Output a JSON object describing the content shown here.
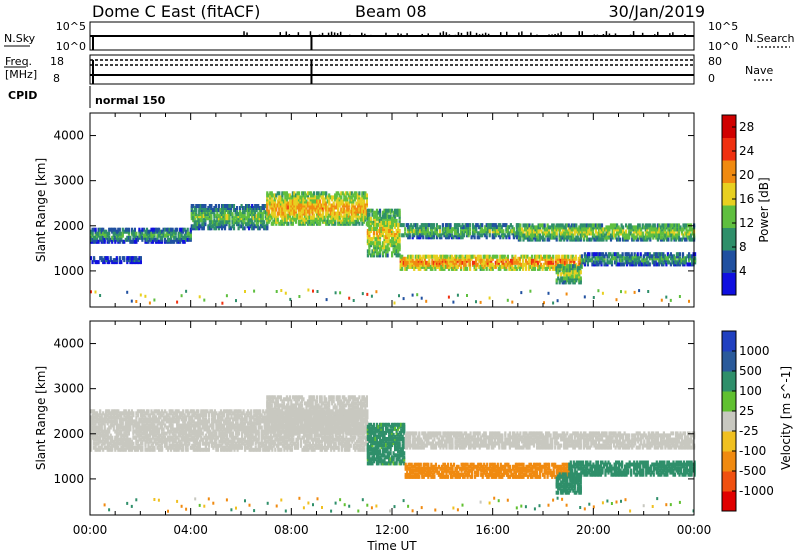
{
  "header": {
    "radar": "Dome C East (fitACF)",
    "beam": "Beam 08",
    "date": "30/Jan/2019"
  },
  "aux": {
    "nsky_label": "N.Sky",
    "nsky_ticks": [
      "10^5",
      "10^0"
    ],
    "nsearch_label": "N.Search",
    "nsearch_ticks": [
      "10^5",
      "10^0"
    ],
    "freq_label": "Freq.",
    "freq_unit": "[MHz]",
    "freq_ticks": [
      "18",
      "8"
    ],
    "nave_label": "Nave",
    "nave_ticks": [
      "80",
      "0"
    ],
    "cpid_label": "CPID",
    "cpid_value": "normal 150"
  },
  "colors": {
    "power": [
      "#1010e0",
      "#2050a0",
      "#2f8f6a",
      "#5fbf3f",
      "#e8d020",
      "#f08a10",
      "#f03010",
      "#d00000"
    ],
    "velocity": [
      "#e00000",
      "#f05010",
      "#f08a10",
      "#f0c020",
      "#c8c8c0",
      "#60c030",
      "#2f8f6a",
      "#2a5a9a",
      "#2040c0"
    ],
    "ground_scatter": "#c8c8c0"
  },
  "chart_data": [
    {
      "type": "heatmap",
      "name": "power",
      "xlabel": "",
      "ylabel": "Slant Range [km]",
      "x_ticks": [
        "00:00",
        "04:00",
        "08:00",
        "12:00",
        "16:00",
        "20:00",
        "00:00"
      ],
      "x_range_hours": [
        0,
        24
      ],
      "y_ticks": [
        1000,
        2000,
        3000,
        4000
      ],
      "ylim": [
        200,
        4500
      ],
      "colorbar_label": "Power [dB]",
      "colorbar_ticks": [
        4,
        8,
        12,
        16,
        20,
        24,
        28
      ],
      "colorbar_range": [
        0,
        30
      ],
      "scatter_bands": [
        {
          "t": [
            0,
            4.0
          ],
          "range_km": [
            1600,
            1900
          ],
          "level_db": 12
        },
        {
          "t": [
            0,
            2.0
          ],
          "range_km": [
            1150,
            1280
          ],
          "level_db": 8
        },
        {
          "t": [
            4.0,
            7.0
          ],
          "range_km": [
            1900,
            2400
          ],
          "level_db": 14
        },
        {
          "t": [
            7.0,
            11.0
          ],
          "range_km": [
            2000,
            2700
          ],
          "level_db": 20
        },
        {
          "t": [
            11.0,
            12.3
          ],
          "range_km": [
            1300,
            2300
          ],
          "level_db": 18
        },
        {
          "t": [
            12.3,
            19.5
          ],
          "range_km": [
            1000,
            1300
          ],
          "level_db": 22
        },
        {
          "t": [
            12.3,
            17.0
          ],
          "range_km": [
            1700,
            2000
          ],
          "level_db": 14
        },
        {
          "t": [
            17.0,
            24.0
          ],
          "range_km": [
            1650,
            2000
          ],
          "level_db": 16
        },
        {
          "t": [
            19.5,
            24.0
          ],
          "range_km": [
            1100,
            1350
          ],
          "level_db": 12
        },
        {
          "t": [
            18.5,
            19.5
          ],
          "range_km": [
            700,
            1100
          ],
          "level_db": 16
        }
      ]
    },
    {
      "type": "heatmap",
      "name": "velocity",
      "xlabel": "Time UT",
      "ylabel": "Slant Range [km]",
      "x_ticks": [
        "00:00",
        "04:00",
        "08:00",
        "12:00",
        "16:00",
        "20:00",
        "00:00"
      ],
      "x_range_hours": [
        0,
        24
      ],
      "y_ticks": [
        1000,
        2000,
        3000,
        4000
      ],
      "ylim": [
        200,
        4500
      ],
      "colorbar_label": "Velocity [m s^-1]",
      "colorbar_ticks": [
        "1000",
        "500",
        "100",
        "25",
        "-25",
        "-100",
        "-500",
        "-1000"
      ],
      "scatter_bands": [
        {
          "t": [
            0,
            11.0
          ],
          "range_km": [
            1600,
            2500
          ],
          "velocity_ms": 0
        },
        {
          "t": [
            7.0,
            11.0
          ],
          "range_km": [
            2000,
            2800
          ],
          "velocity_ms": 0
        },
        {
          "t": [
            11.0,
            12.5
          ],
          "range_km": [
            1300,
            2200
          ],
          "velocity_ms": 150
        },
        {
          "t": [
            12.5,
            19.0
          ],
          "range_km": [
            1000,
            1300
          ],
          "velocity_ms": -300
        },
        {
          "t": [
            12.5,
            24.0
          ],
          "range_km": [
            1650,
            2000
          ],
          "velocity_ms": 0
        },
        {
          "t": [
            19.0,
            24.0
          ],
          "range_km": [
            1050,
            1350
          ],
          "velocity_ms": 200
        },
        {
          "t": [
            18.5,
            19.5
          ],
          "range_km": [
            650,
            1100
          ],
          "velocity_ms": 300
        }
      ]
    }
  ]
}
